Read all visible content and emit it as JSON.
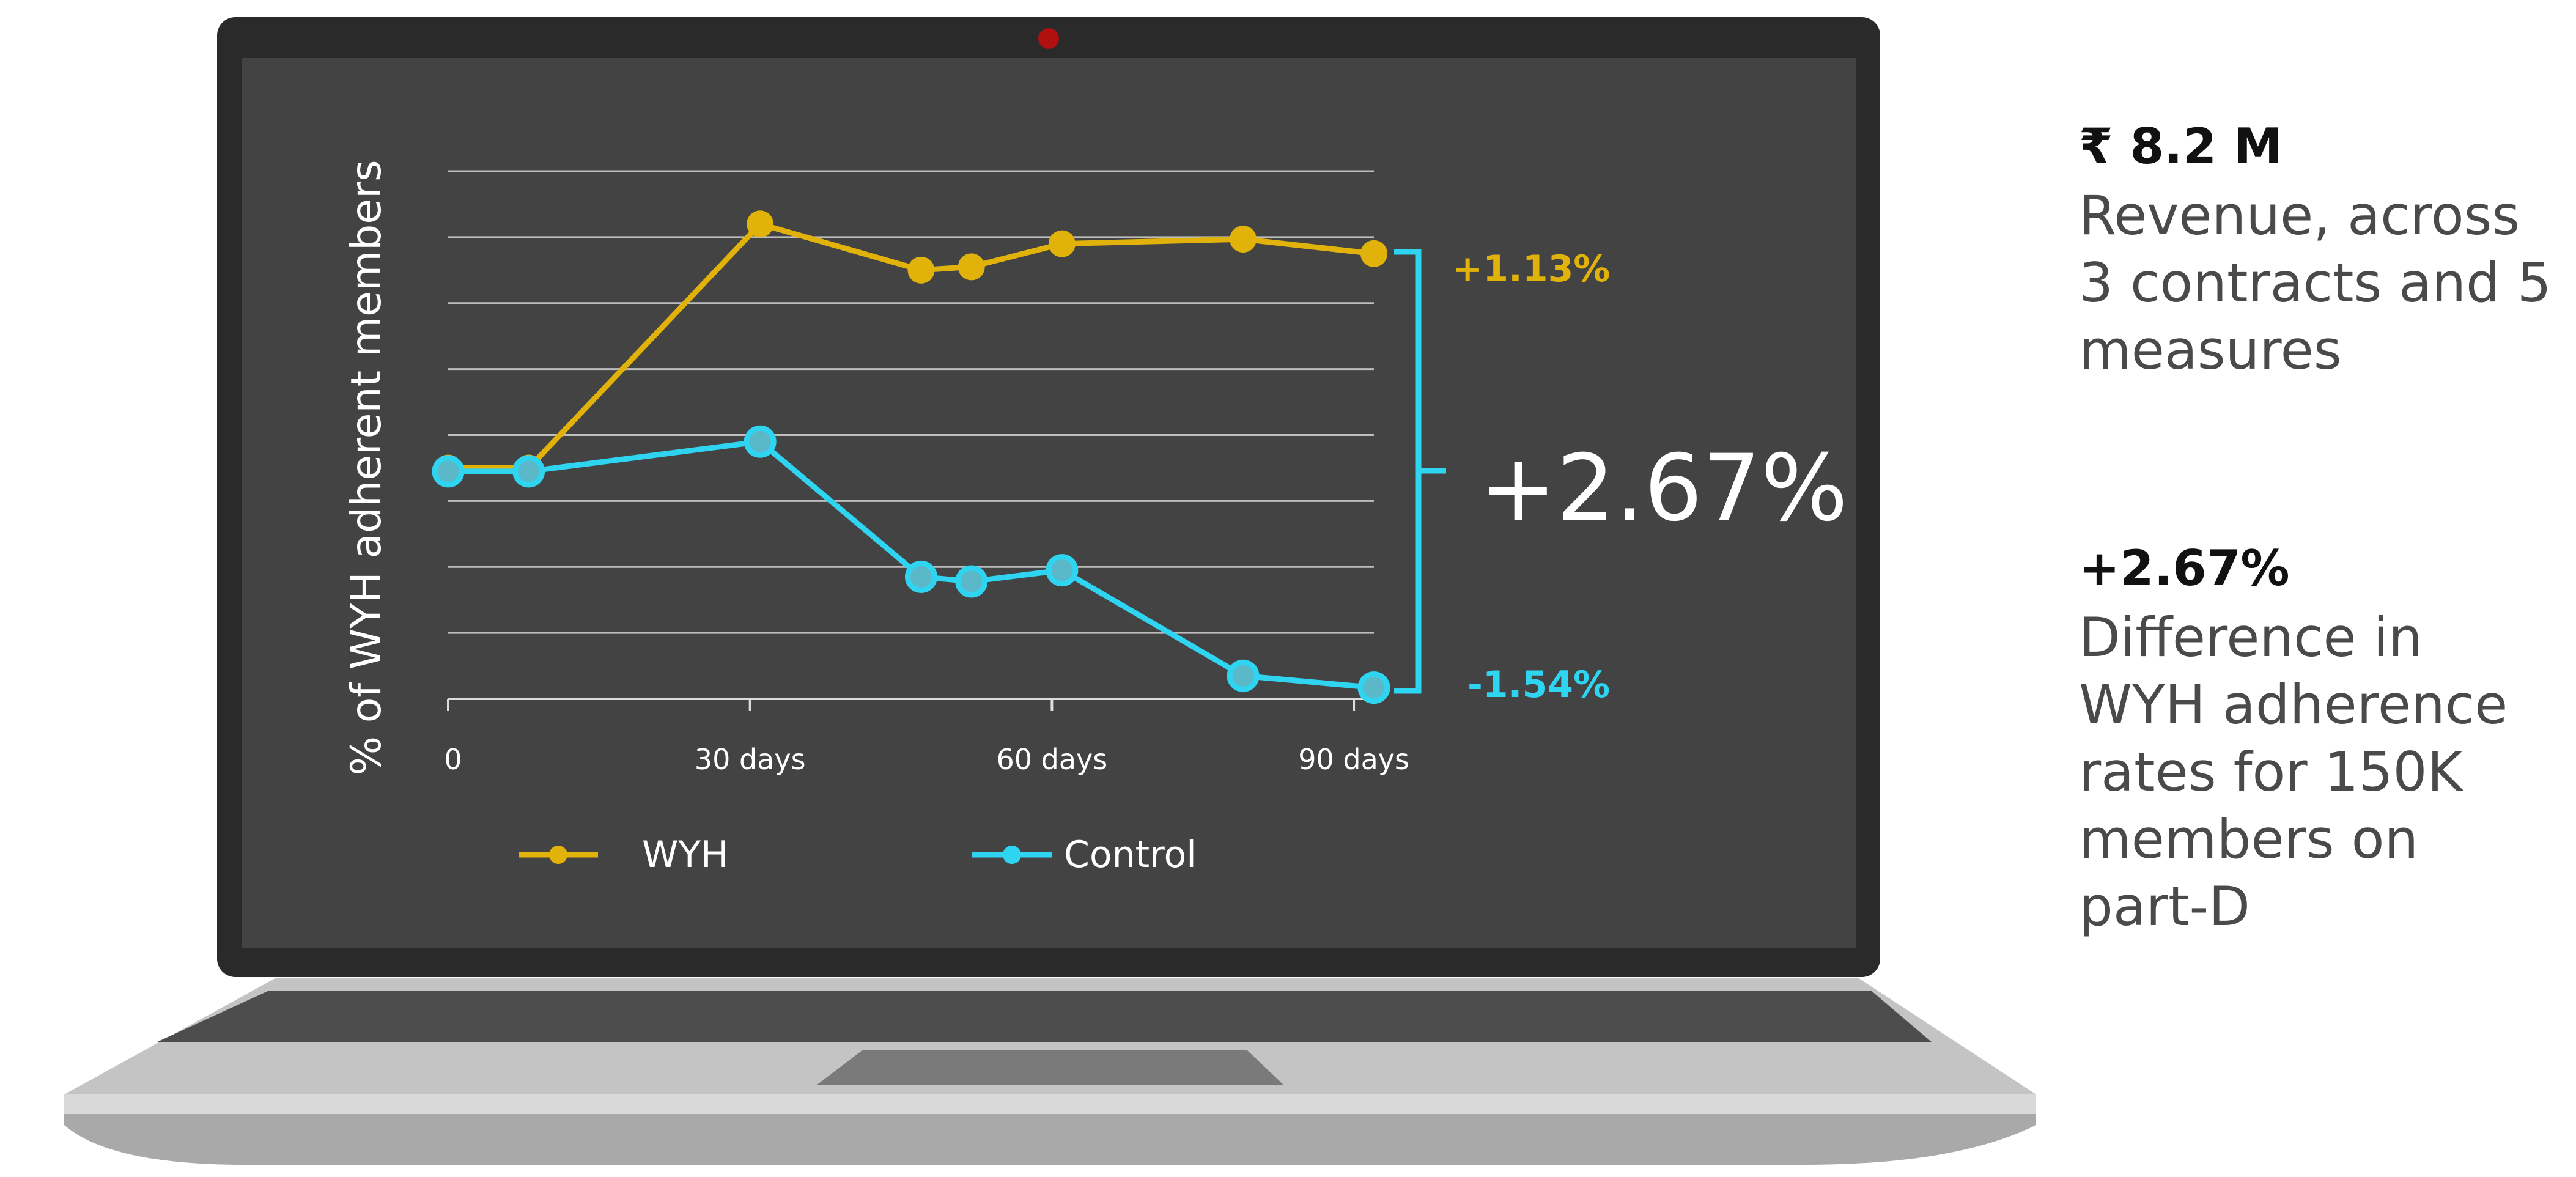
{
  "chart_data": {
    "type": "line",
    "title": "",
    "ylabel": "% of WYH adherent members",
    "xlabel": "",
    "x_ticks": [
      {
        "label": "0",
        "value": 0
      },
      {
        "label": "30 days",
        "value": 30
      },
      {
        "label": "60 days",
        "value": 60
      },
      {
        "label": "90 days",
        "value": 90
      }
    ],
    "xlim": [
      0,
      92
    ],
    "ylim": [
      0,
      8
    ],
    "grid": true,
    "legend_position": "bottom",
    "series": [
      {
        "name": "WYH",
        "color": "#E0B20A",
        "x": [
          0,
          8,
          31,
          47,
          52,
          61,
          79,
          92
        ],
        "y": [
          3.5,
          3.5,
          7.2,
          6.5,
          6.55,
          6.9,
          6.97,
          6.75
        ]
      },
      {
        "name": "Control",
        "color": "#2ED4F0",
        "x": [
          0,
          8,
          31,
          47,
          52,
          61,
          79,
          92
        ],
        "y": [
          3.45,
          3.45,
          3.9,
          1.85,
          1.78,
          1.95,
          0.35,
          0.17
        ]
      }
    ],
    "annotations": {
      "wyh_change": "+1.13%",
      "control_change": "-1.54%",
      "difference": "+2.67%"
    }
  },
  "colors": {
    "screen_bg": "#434343",
    "bezel": "#2a2a2a",
    "wyh": "#E0B20A",
    "control": "#2ED4F0",
    "camera": "#b01010"
  },
  "stats": [
    {
      "value": "₹ 8.2 M",
      "desc": "Revenue, across 3 contracts and 5 measures"
    },
    {
      "value": "+2.67%",
      "desc": "Difference in WYH adherence rates for 150K members on part-D"
    }
  ]
}
